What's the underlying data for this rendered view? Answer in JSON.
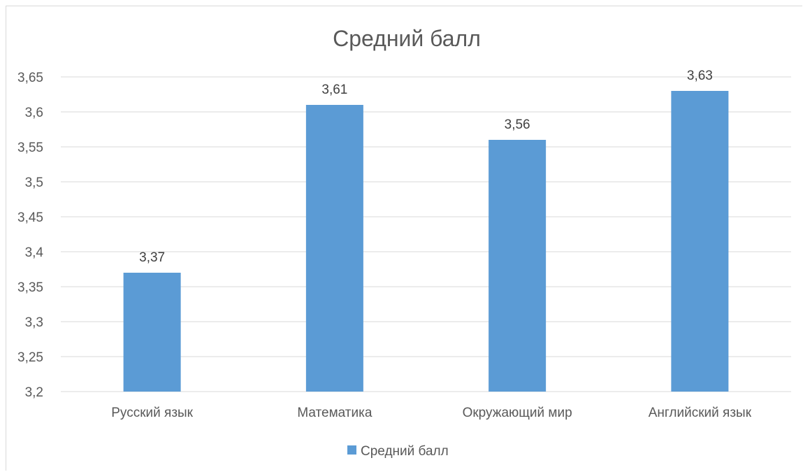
{
  "chart_data": {
    "type": "bar",
    "title": "Средний балл",
    "categories": [
      "Русский язык",
      "Математика",
      "Окружающий мир",
      "Английский язык"
    ],
    "series": [
      {
        "name": "Средний балл",
        "values": [
          3.37,
          3.61,
          3.56,
          3.63
        ],
        "color": "#5b9bd5"
      }
    ],
    "data_labels": [
      "3,37",
      "3,61",
      "3,56",
      "3,63"
    ],
    "ylim": [
      3.2,
      3.65
    ],
    "y_ticks": [
      3.2,
      3.25,
      3.3,
      3.35,
      3.4,
      3.45,
      3.5,
      3.55,
      3.6,
      3.65
    ],
    "y_tick_labels": [
      "3,2",
      "3,25",
      "3,3",
      "3,35",
      "3,4",
      "3,45",
      "3,5",
      "3,55",
      "3,6",
      "3,65"
    ],
    "grid": true,
    "legend_position": "bottom",
    "xlabel": "",
    "ylabel": ""
  }
}
